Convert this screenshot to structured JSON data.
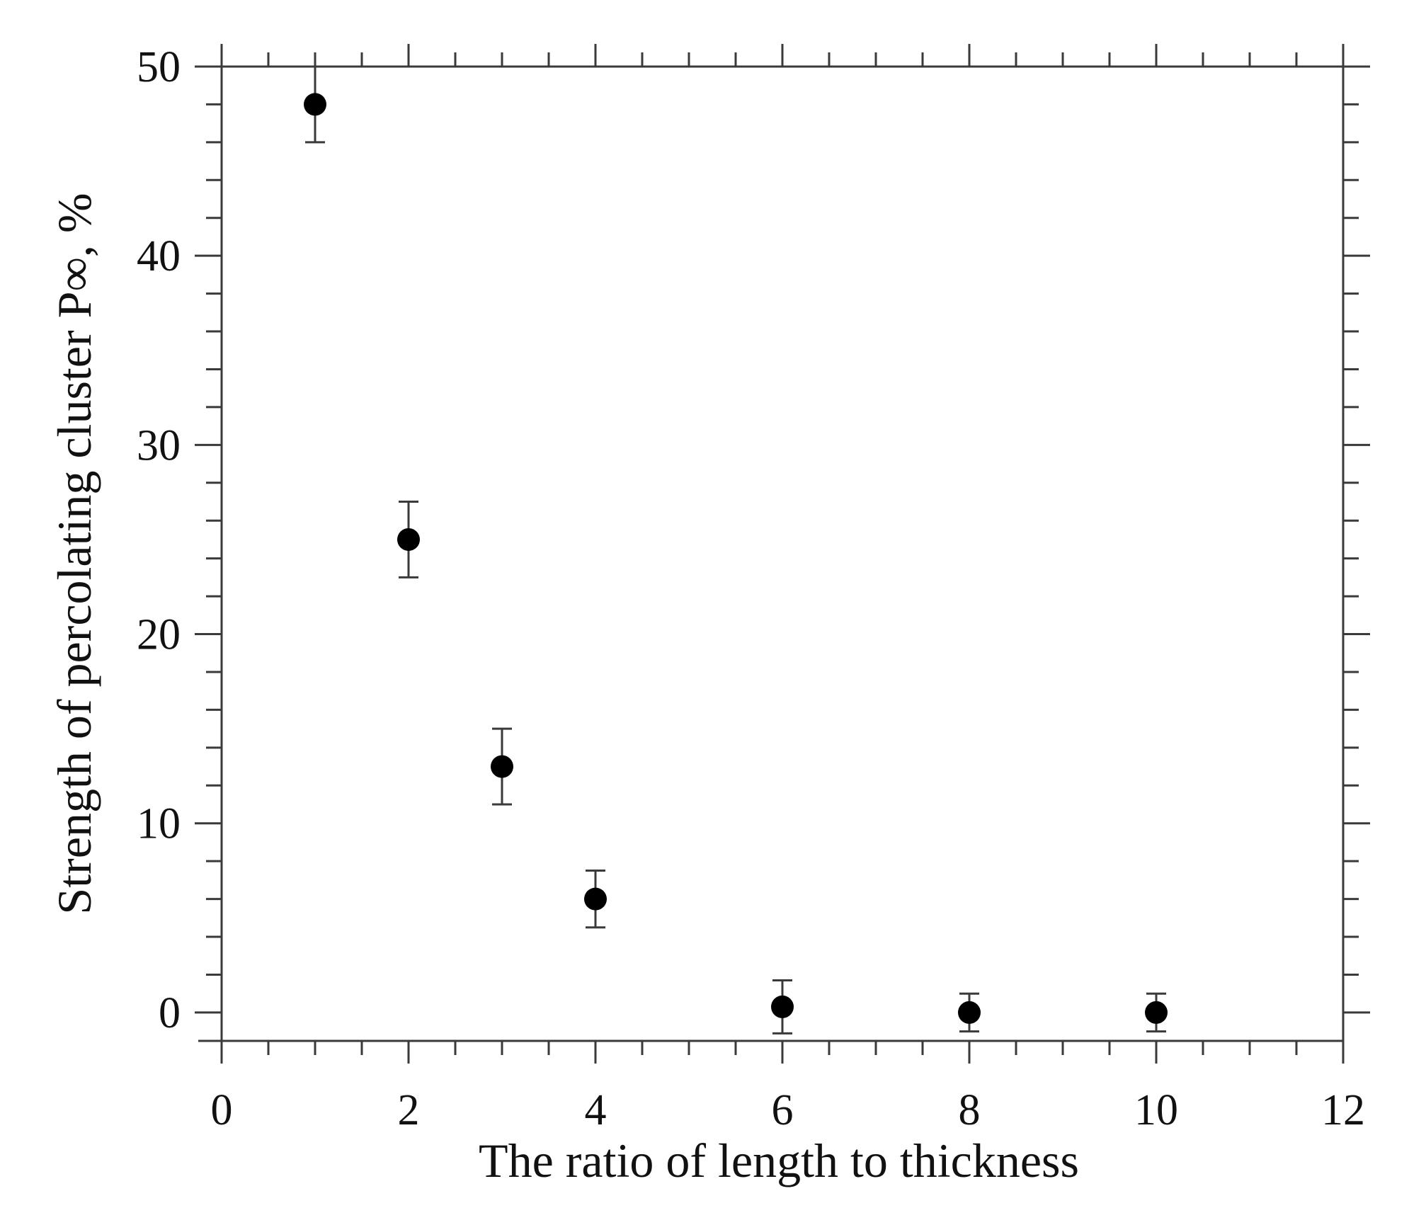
{
  "chart_data": {
    "type": "scatter",
    "title": "",
    "xlabel": "The ratio of length to thickness",
    "ylabel": "Strength of percolating cluster P∞, %",
    "xlim": [
      0,
      12
    ],
    "ylim": [
      -1.5,
      50
    ],
    "x_ticks": [
      0,
      2,
      4,
      6,
      8,
      10,
      12
    ],
    "x_tick_labels": [
      "0",
      "2",
      "4",
      "6",
      "8",
      "10",
      "12"
    ],
    "y_ticks": [
      0,
      10,
      20,
      30,
      40,
      50
    ],
    "y_tick_labels": [
      "0",
      "10",
      "20",
      "30",
      "40",
      "50"
    ],
    "grid": false,
    "legend": "none",
    "marker_color": "#000000",
    "series": [
      {
        "x": [
          1,
          2,
          3,
          4,
          6,
          8,
          10
        ],
        "y": [
          48,
          25,
          13,
          6,
          0.3,
          0,
          0
        ],
        "error": [
          2,
          2,
          2,
          1.5,
          1.4,
          1,
          1
        ]
      }
    ]
  }
}
